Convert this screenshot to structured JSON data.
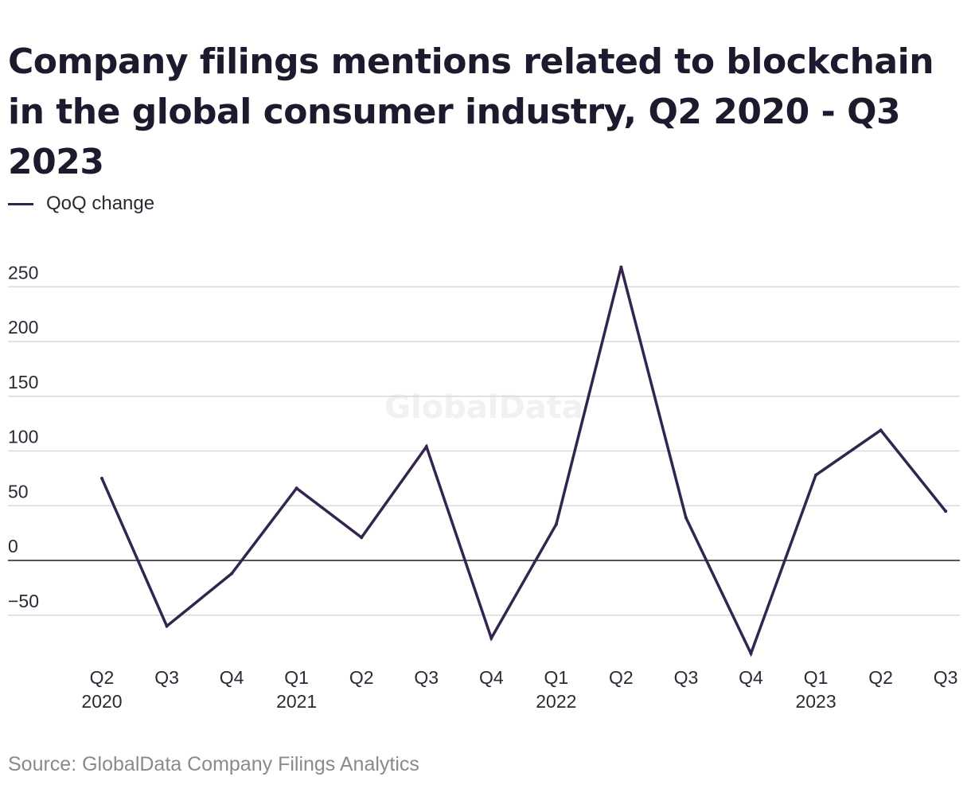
{
  "title": "Company filings mentions related to blockchain in the global consumer industry, Q2 2020 - Q3 2023",
  "legend": {
    "label": "QoQ change",
    "color": "#33254f"
  },
  "watermark": "GlobalData",
  "source": "Source: GlobalData Company Filings Analytics",
  "chart_data": {
    "type": "line",
    "title": "Company filings mentions related to blockchain in the global consumer industry, Q2 2020 - Q3 2023",
    "categories": [
      "Q2 2020",
      "Q3 2020",
      "Q4 2020",
      "Q1 2021",
      "Q2 2021",
      "Q3 2021",
      "Q4 2021",
      "Q1 2022",
      "Q2 2022",
      "Q3 2022",
      "Q4 2022",
      "Q1 2023",
      "Q2 2023",
      "Q3 2023"
    ],
    "tick_labels": [
      {
        "quarter": "Q2",
        "year": "2020"
      },
      {
        "quarter": "Q3",
        "year": ""
      },
      {
        "quarter": "Q4",
        "year": ""
      },
      {
        "quarter": "Q1",
        "year": "2021"
      },
      {
        "quarter": "Q2",
        "year": ""
      },
      {
        "quarter": "Q3",
        "year": ""
      },
      {
        "quarter": "Q4",
        "year": ""
      },
      {
        "quarter": "Q1",
        "year": "2022"
      },
      {
        "quarter": "Q2",
        "year": ""
      },
      {
        "quarter": "Q3",
        "year": ""
      },
      {
        "quarter": "Q4",
        "year": ""
      },
      {
        "quarter": "Q1",
        "year": "2023"
      },
      {
        "quarter": "Q2",
        "year": ""
      },
      {
        "quarter": "Q3",
        "year": ""
      }
    ],
    "series": [
      {
        "name": "QoQ change",
        "color": "#33254f",
        "values": [
          75,
          -60,
          -12,
          66,
          21,
          104,
          -71,
          33,
          268,
          39,
          -85,
          78,
          119,
          45
        ]
      }
    ],
    "y_ticks": [
      -50,
      0,
      50,
      100,
      150,
      200,
      250
    ],
    "y_tick_labels": [
      "−50",
      "0",
      "50",
      "100",
      "150",
      "200",
      "250"
    ],
    "ylim": [
      -95,
      275
    ],
    "xlabel": "",
    "ylabel": "",
    "grid": true,
    "legend_position": "top-left"
  }
}
